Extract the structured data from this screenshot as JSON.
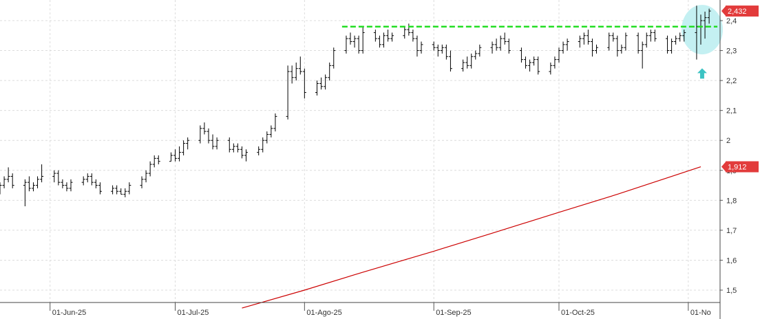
{
  "chart_data": {
    "type": "ohlc",
    "title": "",
    "xlabel": "",
    "ylabel": "",
    "ylim": [
      1.45,
      2.46
    ],
    "y_ticks": [
      "2,4",
      "2,3",
      "2,2",
      "2,1",
      "2",
      "1,9",
      "1,8",
      "1,7",
      "1,6",
      "1,5"
    ],
    "y_tick_values": [
      2.4,
      2.3,
      2.2,
      2.1,
      2.0,
      1.9,
      1.8,
      1.7,
      1.6,
      1.5
    ],
    "x_start": "2025-05-20",
    "x_end": "2025-11-04",
    "x_ticks": [
      {
        "label": "01-Jun-25",
        "date": "2025-06-01"
      },
      {
        "label": "01-Jul-25",
        "date": "2025-07-01"
      },
      {
        "label": "01-Ago-25",
        "date": "2025-08-01"
      },
      {
        "label": "01-Sep-25",
        "date": "2025-09-01"
      },
      {
        "label": "01-Oct-25",
        "date": "2025-10-01"
      },
      {
        "label": "01-No",
        "date": "2025-11-01"
      }
    ],
    "grid": true,
    "colors": {
      "bars": "#000000",
      "moving_average": "#cc0000",
      "resistance": "#22dd22",
      "highlight": "#c4f0f2",
      "arrow": "#3cc3c3",
      "last_price_badge": "#e23b3b"
    },
    "last_price": {
      "label": "2,432",
      "value": 2.432
    },
    "ma_last": {
      "label": "1,912",
      "value": 1.912
    },
    "resistance_level": 2.38,
    "resistance_start": "2025-08-10",
    "resistance_end": "2025-11-06",
    "moving_average": [
      [
        "2025-07-17",
        1.44
      ],
      [
        "2025-08-01",
        1.5
      ],
      [
        "2025-08-15",
        1.56
      ],
      [
        "2025-09-01",
        1.63
      ],
      [
        "2025-09-15",
        1.69
      ],
      [
        "2025-10-01",
        1.76
      ],
      [
        "2025-10-15",
        1.82
      ],
      [
        "2025-11-04",
        1.912
      ]
    ],
    "bars": [
      [
        "2025-05-20",
        1.84,
        1.86,
        1.82,
        1.85
      ],
      [
        "2025-05-21",
        1.85,
        1.88,
        1.84,
        1.87
      ],
      [
        "2025-05-22",
        1.87,
        1.91,
        1.86,
        1.88
      ],
      [
        "2025-05-23",
        1.88,
        1.89,
        1.84,
        1.85
      ],
      [
        "2025-05-26",
        1.85,
        1.87,
        1.78,
        1.86
      ],
      [
        "2025-05-27",
        1.86,
        1.88,
        1.83,
        1.84
      ],
      [
        "2025-05-28",
        1.84,
        1.86,
        1.83,
        1.85
      ],
      [
        "2025-05-29",
        1.85,
        1.88,
        1.84,
        1.87
      ],
      [
        "2025-05-30",
        1.87,
        1.92,
        1.86,
        1.88
      ],
      [
        "2025-06-02",
        1.88,
        1.9,
        1.86,
        1.89
      ],
      [
        "2025-06-03",
        1.89,
        1.9,
        1.85,
        1.86
      ],
      [
        "2025-06-04",
        1.86,
        1.87,
        1.84,
        1.85
      ],
      [
        "2025-06-05",
        1.85,
        1.86,
        1.83,
        1.84
      ],
      [
        "2025-06-06",
        1.84,
        1.87,
        1.83,
        1.86
      ],
      [
        "2025-06-09",
        1.86,
        1.88,
        1.85,
        1.87
      ],
      [
        "2025-06-10",
        1.87,
        1.89,
        1.86,
        1.88
      ],
      [
        "2025-06-11",
        1.88,
        1.89,
        1.85,
        1.86
      ],
      [
        "2025-06-12",
        1.86,
        1.87,
        1.84,
        1.85
      ],
      [
        "2025-06-13",
        1.85,
        1.86,
        1.82,
        1.83
      ],
      [
        "2025-06-16",
        1.83,
        1.85,
        1.82,
        1.84
      ],
      [
        "2025-06-17",
        1.84,
        1.85,
        1.82,
        1.83
      ],
      [
        "2025-06-18",
        1.83,
        1.84,
        1.82,
        1.82
      ],
      [
        "2025-06-19",
        1.82,
        1.84,
        1.81,
        1.83
      ],
      [
        "2025-06-20",
        1.83,
        1.86,
        1.82,
        1.85
      ],
      [
        "2025-06-23",
        1.85,
        1.88,
        1.84,
        1.87
      ],
      [
        "2025-06-24",
        1.87,
        1.9,
        1.86,
        1.89
      ],
      [
        "2025-06-25",
        1.89,
        1.93,
        1.88,
        1.92
      ],
      [
        "2025-06-26",
        1.92,
        1.95,
        1.91,
        1.94
      ],
      [
        "2025-06-27",
        1.94,
        1.95,
        1.92,
        1.93
      ],
      [
        "2025-06-30",
        1.93,
        1.96,
        1.93,
        1.95
      ],
      [
        "2025-07-01",
        1.95,
        1.97,
        1.93,
        1.94
      ],
      [
        "2025-07-02",
        1.94,
        1.98,
        1.93,
        1.96
      ],
      [
        "2025-07-03",
        1.96,
        2.0,
        1.95,
        1.99
      ],
      [
        "2025-07-04",
        1.99,
        2.01,
        1.97,
        2.0
      ],
      [
        "2025-07-07",
        2.0,
        2.05,
        1.99,
        2.04
      ],
      [
        "2025-07-08",
        2.04,
        2.06,
        2.02,
        2.03
      ],
      [
        "2025-07-09",
        2.03,
        2.04,
        1.99,
        2.0
      ],
      [
        "2025-07-10",
        2.0,
        2.02,
        1.97,
        1.98
      ],
      [
        "2025-07-11",
        1.98,
        2.01,
        1.97,
        2.0
      ],
      [
        "2025-07-14",
        2.0,
        2.01,
        1.96,
        1.97
      ],
      [
        "2025-07-15",
        1.97,
        1.99,
        1.96,
        1.98
      ],
      [
        "2025-07-16",
        1.98,
        1.99,
        1.96,
        1.97
      ],
      [
        "2025-07-17",
        1.97,
        1.98,
        1.94,
        1.95
      ],
      [
        "2025-07-18",
        1.95,
        1.97,
        1.93,
        1.96
      ],
      [
        "2025-07-21",
        1.96,
        1.98,
        1.95,
        1.97
      ],
      [
        "2025-07-22",
        1.97,
        2.01,
        1.96,
        2.0
      ],
      [
        "2025-07-23",
        2.0,
        2.03,
        1.99,
        2.02
      ],
      [
        "2025-07-24",
        2.02,
        2.05,
        2.01,
        2.04
      ],
      [
        "2025-07-25",
        2.04,
        2.09,
        2.03,
        2.08
      ],
      [
        "2025-07-28",
        2.08,
        2.25,
        2.07,
        2.23
      ],
      [
        "2025-07-29",
        2.23,
        2.25,
        2.19,
        2.21
      ],
      [
        "2025-07-30",
        2.21,
        2.26,
        2.2,
        2.24
      ],
      [
        "2025-07-31",
        2.24,
        2.28,
        2.22,
        2.23
      ],
      [
        "2025-08-01",
        2.23,
        2.24,
        2.14,
        2.16
      ],
      [
        "2025-08-04",
        2.16,
        2.2,
        2.15,
        2.19
      ],
      [
        "2025-08-05",
        2.19,
        2.21,
        2.17,
        2.18
      ],
      [
        "2025-08-06",
        2.18,
        2.22,
        2.17,
        2.21
      ],
      [
        "2025-08-07",
        2.21,
        2.26,
        2.2,
        2.25
      ],
      [
        "2025-08-08",
        2.25,
        2.31,
        2.24,
        2.3
      ],
      [
        "2025-08-11",
        2.3,
        2.35,
        2.29,
        2.34
      ],
      [
        "2025-08-12",
        2.34,
        2.36,
        2.32,
        2.33
      ],
      [
        "2025-08-13",
        2.33,
        2.35,
        2.31,
        2.34
      ],
      [
        "2025-08-14",
        2.34,
        2.35,
        2.29,
        2.3
      ],
      [
        "2025-08-15",
        2.3,
        2.38,
        2.29,
        2.36
      ],
      [
        "2025-08-18",
        2.36,
        2.37,
        2.33,
        2.34
      ],
      [
        "2025-08-19",
        2.34,
        2.35,
        2.31,
        2.32
      ],
      [
        "2025-08-20",
        2.32,
        2.36,
        2.31,
        2.35
      ],
      [
        "2025-08-21",
        2.35,
        2.37,
        2.33,
        2.34
      ],
      [
        "2025-08-22",
        2.34,
        2.36,
        2.33,
        2.35
      ],
      [
        "2025-08-25",
        2.35,
        2.38,
        2.34,
        2.37
      ],
      [
        "2025-08-26",
        2.37,
        2.39,
        2.35,
        2.36
      ],
      [
        "2025-08-27",
        2.36,
        2.37,
        2.33,
        2.34
      ],
      [
        "2025-08-28",
        2.34,
        2.35,
        2.28,
        2.3
      ],
      [
        "2025-08-29",
        2.3,
        2.33,
        2.29,
        2.32
      ],
      [
        "2025-09-01",
        2.32,
        2.33,
        2.3,
        2.31
      ],
      [
        "2025-09-02",
        2.31,
        2.32,
        2.28,
        2.3
      ],
      [
        "2025-09-03",
        2.3,
        2.32,
        2.29,
        2.31
      ],
      [
        "2025-09-04",
        2.31,
        2.32,
        2.27,
        2.28
      ],
      [
        "2025-09-05",
        2.28,
        2.3,
        2.23,
        2.24
      ],
      [
        "2025-09-08",
        2.24,
        2.27,
        2.23,
        2.26
      ],
      [
        "2025-09-09",
        2.26,
        2.28,
        2.24,
        2.25
      ],
      [
        "2025-09-10",
        2.25,
        2.29,
        2.24,
        2.28
      ],
      [
        "2025-09-11",
        2.28,
        2.3,
        2.27,
        2.29
      ],
      [
        "2025-09-12",
        2.29,
        2.32,
        2.28,
        2.31
      ],
      [
        "2025-09-15",
        2.31,
        2.33,
        2.29,
        2.32
      ],
      [
        "2025-09-16",
        2.32,
        2.34,
        2.3,
        2.31
      ],
      [
        "2025-09-17",
        2.31,
        2.35,
        2.3,
        2.34
      ],
      [
        "2025-09-18",
        2.34,
        2.36,
        2.32,
        2.33
      ],
      [
        "2025-09-19",
        2.33,
        2.34,
        2.29,
        2.3
      ],
      [
        "2025-09-22",
        2.3,
        2.31,
        2.26,
        2.27
      ],
      [
        "2025-09-23",
        2.27,
        2.28,
        2.24,
        2.25
      ],
      [
        "2025-09-24",
        2.25,
        2.27,
        2.23,
        2.26
      ],
      [
        "2025-09-25",
        2.26,
        2.28,
        2.25,
        2.27
      ],
      [
        "2025-09-26",
        2.27,
        2.28,
        2.22,
        2.23
      ],
      [
        "2025-09-29",
        2.23,
        2.26,
        2.22,
        2.25
      ],
      [
        "2025-09-30",
        2.25,
        2.28,
        2.24,
        2.27
      ],
      [
        "2025-10-01",
        2.27,
        2.31,
        2.26,
        2.3
      ],
      [
        "2025-10-02",
        2.3,
        2.33,
        2.29,
        2.32
      ],
      [
        "2025-10-03",
        2.32,
        2.34,
        2.3,
        2.33
      ],
      [
        "2025-10-06",
        2.33,
        2.35,
        2.31,
        2.34
      ],
      [
        "2025-10-07",
        2.34,
        2.36,
        2.32,
        2.35
      ],
      [
        "2025-10-08",
        2.35,
        2.37,
        2.32,
        2.33
      ],
      [
        "2025-10-09",
        2.33,
        2.34,
        2.28,
        2.3
      ],
      [
        "2025-10-10",
        2.3,
        2.32,
        2.29,
        2.31
      ],
      [
        "2025-10-13",
        2.31,
        2.36,
        2.3,
        2.35
      ],
      [
        "2025-10-14",
        2.35,
        2.36,
        2.33,
        2.34
      ],
      [
        "2025-10-15",
        2.34,
        2.35,
        2.28,
        2.3
      ],
      [
        "2025-10-16",
        2.3,
        2.32,
        2.29,
        2.31
      ],
      [
        "2025-10-17",
        2.31,
        2.36,
        2.3,
        2.35
      ],
      [
        "2025-10-20",
        2.35,
        2.36,
        2.29,
        2.3
      ],
      [
        "2025-10-21",
        2.3,
        2.33,
        2.24,
        2.32
      ],
      [
        "2025-10-22",
        2.32,
        2.36,
        2.31,
        2.35
      ],
      [
        "2025-10-23",
        2.35,
        2.37,
        2.33,
        2.36
      ],
      [
        "2025-10-24",
        2.36,
        2.37,
        2.33,
        2.34
      ],
      [
        "2025-10-27",
        2.34,
        2.35,
        2.29,
        2.3
      ],
      [
        "2025-10-28",
        2.3,
        2.34,
        2.29,
        2.33
      ],
      [
        "2025-10-29",
        2.33,
        2.35,
        2.32,
        2.34
      ],
      [
        "2025-10-30",
        2.34,
        2.36,
        2.33,
        2.35
      ],
      [
        "2025-10-31",
        2.35,
        2.37,
        2.33,
        2.36
      ],
      [
        "2025-11-03",
        2.36,
        2.45,
        2.27,
        2.38
      ],
      [
        "2025-11-04",
        2.38,
        2.42,
        2.32,
        2.4
      ],
      [
        "2025-11-05",
        2.4,
        2.43,
        2.34,
        2.41
      ],
      [
        "2025-11-06",
        2.41,
        2.44,
        2.39,
        2.432
      ]
    ]
  }
}
